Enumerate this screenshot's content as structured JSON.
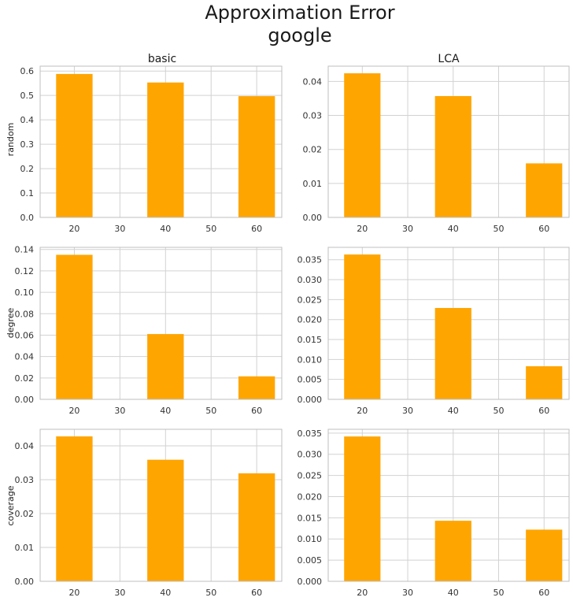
{
  "figure": {
    "title_line1": "Approximation Error",
    "title_line2": "google",
    "column_titles": [
      "basic",
      "LCA"
    ],
    "row_labels": [
      "random",
      "degree",
      "coverage"
    ]
  },
  "colors": {
    "bar": "#FFA500",
    "grid": "#d2d2d2",
    "frame": "#bfbfbf"
  },
  "chart_data": [
    {
      "type": "bar",
      "panel": "random-basic",
      "x_ticks": [
        20,
        30,
        40,
        50,
        60
      ],
      "x": [
        20,
        40,
        60
      ],
      "values": [
        0.588,
        0.553,
        0.497
      ],
      "ylim": [
        0,
        0.62
      ],
      "y_ticks": [
        "0.0",
        "0.1",
        "0.2",
        "0.3",
        "0.4",
        "0.5",
        "0.6"
      ],
      "grid": true
    },
    {
      "type": "bar",
      "panel": "random-LCA",
      "x_ticks": [
        20,
        30,
        40,
        50,
        60
      ],
      "x": [
        20,
        40,
        60
      ],
      "values": [
        0.0424,
        0.0357,
        0.0159
      ],
      "ylim": [
        0,
        0.0445
      ],
      "y_ticks": [
        "0.00",
        "0.01",
        "0.02",
        "0.03",
        "0.04"
      ],
      "grid": true
    },
    {
      "type": "bar",
      "panel": "degree-basic",
      "x_ticks": [
        20,
        30,
        40,
        50,
        60
      ],
      "x": [
        20,
        40,
        60
      ],
      "values": [
        0.135,
        0.061,
        0.0215
      ],
      "ylim": [
        0,
        0.142
      ],
      "y_ticks": [
        "0.00",
        "0.02",
        "0.04",
        "0.06",
        "0.08",
        "0.10",
        "0.12",
        "0.14"
      ],
      "grid": true
    },
    {
      "type": "bar",
      "panel": "degree-LCA",
      "x_ticks": [
        20,
        30,
        40,
        50,
        60
      ],
      "x": [
        20,
        40,
        60
      ],
      "values": [
        0.0363,
        0.0229,
        0.0083
      ],
      "ylim": [
        0,
        0.0381
      ],
      "y_ticks": [
        "0.000",
        "0.005",
        "0.010",
        "0.015",
        "0.020",
        "0.025",
        "0.030",
        "0.035"
      ],
      "grid": true
    },
    {
      "type": "bar",
      "panel": "coverage-basic",
      "x_ticks": [
        20,
        30,
        40,
        50,
        60
      ],
      "x": [
        20,
        40,
        60
      ],
      "values": [
        0.0428,
        0.0359,
        0.0319
      ],
      "ylim": [
        0,
        0.0449
      ],
      "y_ticks": [
        "0.00",
        "0.01",
        "0.02",
        "0.03",
        "0.04"
      ],
      "grid": true
    },
    {
      "type": "bar",
      "panel": "coverage-LCA",
      "x_ticks": [
        20,
        30,
        40,
        50,
        60
      ],
      "x": [
        20,
        40,
        60
      ],
      "values": [
        0.0342,
        0.0143,
        0.0122
      ],
      "ylim": [
        0,
        0.0359
      ],
      "y_ticks": [
        "0.000",
        "0.005",
        "0.010",
        "0.015",
        "0.020",
        "0.025",
        "0.030",
        "0.035"
      ],
      "grid": true
    }
  ]
}
